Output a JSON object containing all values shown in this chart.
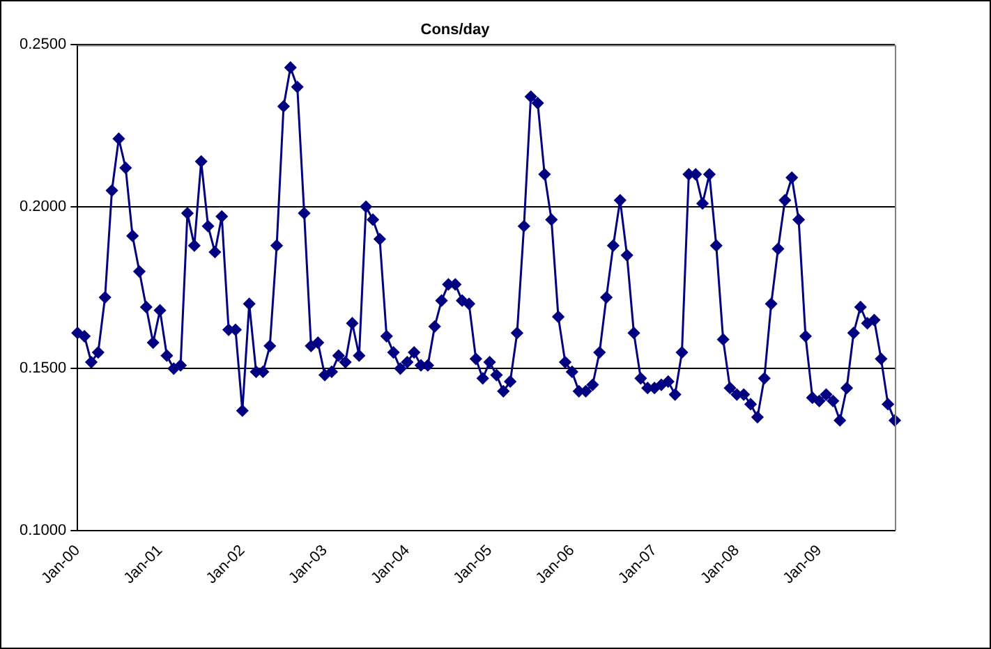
{
  "chart_data": {
    "type": "line",
    "title": "Cons/day",
    "categories": [
      "Jan-00",
      null,
      null,
      null,
      null,
      null,
      null,
      null,
      null,
      null,
      null,
      null,
      "Jan-01",
      null,
      null,
      null,
      null,
      null,
      null,
      null,
      null,
      null,
      null,
      null,
      "Jan-02",
      null,
      null,
      null,
      null,
      null,
      null,
      null,
      null,
      null,
      null,
      null,
      "Jan-03",
      null,
      null,
      null,
      null,
      null,
      null,
      null,
      null,
      null,
      null,
      null,
      "Jan-04",
      null,
      null,
      null,
      null,
      null,
      null,
      null,
      null,
      null,
      null,
      null,
      "Jan-05",
      null,
      null,
      null,
      null,
      null,
      null,
      null,
      null,
      null,
      null,
      null,
      "Jan-06",
      null,
      null,
      null,
      null,
      null,
      null,
      null,
      null,
      null,
      null,
      null,
      "Jan-07",
      null,
      null,
      null,
      null,
      null,
      null,
      null,
      null,
      null,
      null,
      null,
      "Jan-08",
      null,
      null,
      null,
      null,
      null,
      null,
      null,
      null,
      null,
      null,
      null,
      "Jan-09",
      null,
      null,
      null,
      null,
      null,
      null,
      null,
      null,
      null,
      null,
      null
    ],
    "series": [
      {
        "color": "#000080",
        "values": [
          0.161,
          0.16,
          0.152,
          0.155,
          0.172,
          0.205,
          0.221,
          0.212,
          0.191,
          0.18,
          0.169,
          0.158,
          0.168,
          0.154,
          0.15,
          0.151,
          0.198,
          0.188,
          0.214,
          0.194,
          0.186,
          0.197,
          0.162,
          0.162,
          0.137,
          0.17,
          0.149,
          0.149,
          0.157,
          0.188,
          0.231,
          0.243,
          0.237,
          0.198,
          0.157,
          0.158,
          0.148,
          0.149,
          0.154,
          0.152,
          0.164,
          0.154,
          0.2,
          0.196,
          0.19,
          0.16,
          0.155,
          0.15,
          0.152,
          0.155,
          0.151,
          0.151,
          0.163,
          0.171,
          0.176,
          0.176,
          0.171,
          0.17,
          0.153,
          0.147,
          0.152,
          0.148,
          0.143,
          0.146,
          0.161,
          0.194,
          0.234,
          0.232,
          0.21,
          0.196,
          0.166,
          0.152,
          0.149,
          0.143,
          0.143,
          0.145,
          0.155,
          0.172,
          0.188,
          0.202,
          0.185,
          0.161,
          0.147,
          0.144,
          0.144,
          0.145,
          0.146,
          0.142,
          0.155,
          0.21,
          0.21,
          0.201,
          0.21,
          0.188,
          0.159,
          0.144,
          0.142,
          0.142,
          0.139,
          0.135,
          0.147,
          0.17,
          0.187,
          0.202,
          0.209,
          0.196,
          0.16,
          0.141,
          0.14,
          0.142,
          0.14,
          0.134,
          0.144,
          0.161,
          0.169,
          0.164,
          0.165,
          0.153,
          0.139,
          0.134
        ]
      }
    ],
    "ylim": [
      0.1,
      0.25
    ],
    "yticks": [
      {
        "value": 0.1,
        "label": "0.1000"
      },
      {
        "value": 0.15,
        "label": "0.1500"
      },
      {
        "value": 0.2,
        "label": "0.2000"
      },
      {
        "value": 0.25,
        "label": "0.2500"
      }
    ],
    "grid": "y",
    "legend": false,
    "marker": "diamond",
    "line_style": "solid"
  }
}
